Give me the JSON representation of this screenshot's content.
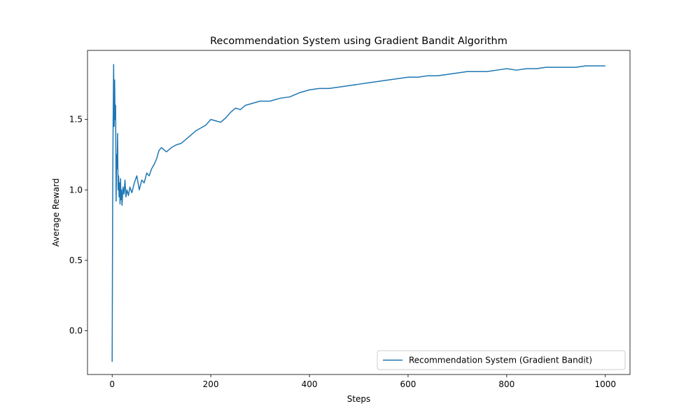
{
  "chart_data": {
    "type": "line",
    "title": "Recommendation System using Gradient Bandit Algorithm",
    "xlabel": "Steps",
    "ylabel": "Average Reward",
    "xlim": [
      -50,
      1050
    ],
    "ylim": [
      -0.31,
      1.99
    ],
    "xticks": [
      0,
      200,
      400,
      600,
      800,
      1000
    ],
    "xtick_labels": [
      "0",
      "200",
      "400",
      "600",
      "800",
      "1000"
    ],
    "yticks": [
      0.0,
      0.5,
      1.0,
      1.5
    ],
    "ytick_labels": [
      "0.0",
      "0.5",
      "1.0",
      "1.5"
    ],
    "grid": false,
    "legend_position": "lower-right",
    "series": [
      {
        "name": "Recommendation System (Gradient Bandit)",
        "color": "#1f77b4",
        "x": [
          0,
          1,
          2,
          3,
          4,
          5,
          6,
          7,
          8,
          9,
          10,
          11,
          12,
          13,
          14,
          15,
          16,
          17,
          18,
          19,
          20,
          22,
          24,
          26,
          28,
          30,
          33,
          36,
          40,
          45,
          50,
          55,
          60,
          65,
          70,
          75,
          80,
          85,
          90,
          95,
          100,
          110,
          120,
          130,
          140,
          150,
          160,
          170,
          180,
          190,
          200,
          210,
          220,
          230,
          240,
          250,
          260,
          270,
          280,
          290,
          300,
          320,
          340,
          360,
          380,
          400,
          420,
          440,
          460,
          480,
          500,
          520,
          540,
          560,
          580,
          600,
          620,
          640,
          660,
          680,
          700,
          720,
          740,
          760,
          780,
          800,
          820,
          840,
          860,
          880,
          900,
          920,
          940,
          960,
          980,
          1000
        ],
        "values": [
          -0.22,
          0.9,
          1.5,
          1.89,
          1.45,
          1.78,
          1.5,
          1.6,
          0.92,
          1.25,
          1.15,
          1.4,
          1.0,
          1.1,
          0.95,
          1.05,
          0.9,
          1.08,
          0.93,
          1.0,
          0.89,
          1.02,
          0.97,
          1.07,
          0.95,
          1.0,
          0.96,
          1.02,
          0.98,
          1.05,
          1.1,
          1.0,
          1.07,
          1.05,
          1.12,
          1.1,
          1.15,
          1.18,
          1.22,
          1.28,
          1.3,
          1.27,
          1.3,
          1.32,
          1.33,
          1.36,
          1.39,
          1.42,
          1.44,
          1.46,
          1.5,
          1.49,
          1.48,
          1.51,
          1.55,
          1.58,
          1.57,
          1.6,
          1.61,
          1.62,
          1.63,
          1.63,
          1.65,
          1.66,
          1.69,
          1.71,
          1.72,
          1.72,
          1.73,
          1.74,
          1.75,
          1.76,
          1.77,
          1.78,
          1.79,
          1.8,
          1.8,
          1.81,
          1.81,
          1.82,
          1.83,
          1.84,
          1.84,
          1.84,
          1.85,
          1.86,
          1.85,
          1.86,
          1.86,
          1.87,
          1.87,
          1.87,
          1.87,
          1.88,
          1.88,
          1.88
        ]
      }
    ]
  }
}
